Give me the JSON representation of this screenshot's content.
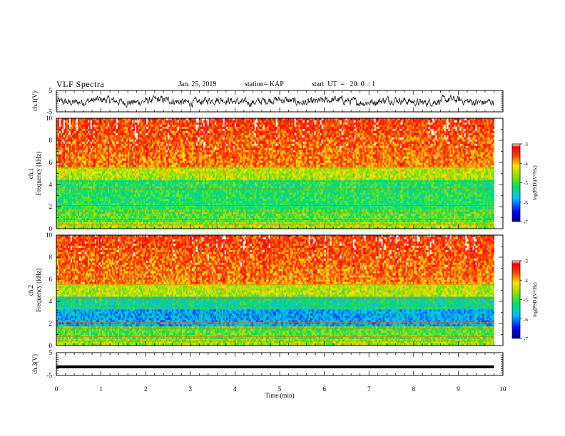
{
  "header": {
    "title": "VLF Spectra",
    "date": "Jan. 25, 2019",
    "station": "station= KAP",
    "start": "start  UT  =   20: 0  : 1"
  },
  "chart_data": [
    {
      "type": "line",
      "name": "ch1-waveform",
      "ylabel": "ch.1(V)",
      "xlim": [
        0,
        10
      ],
      "ylim": [
        -5,
        5
      ],
      "yticks": [
        "5",
        "-5"
      ]
    },
    {
      "type": "heatmap",
      "name": "ch1-spectrogram",
      "ylabel": "ch.1\nFrequency (kHz)",
      "xlim": [
        0,
        10
      ],
      "ylim": [
        0,
        10
      ],
      "yticks": [
        "0",
        "2",
        "4",
        "6",
        "8",
        "10"
      ],
      "colorbar": {
        "label": "log(PSD)(V²/Hz)",
        "range": [
          -7,
          -3
        ],
        "ticks": [
          "-3",
          "-4",
          "-5",
          "-6",
          "-7"
        ]
      },
      "data_extent_min": 9.8
    },
    {
      "type": "heatmap",
      "name": "ch2-spectrogram",
      "ylabel": "ch.2\nFrequency (kHz)",
      "xlim": [
        0,
        10
      ],
      "ylim": [
        0,
        10
      ],
      "yticks": [
        "0",
        "2",
        "4",
        "6",
        "8",
        "10"
      ],
      "colorbar": {
        "label": "log(PSD)(V²/Hz)",
        "range": [
          -7,
          -3
        ],
        "ticks": [
          "-3",
          "-4",
          "-5",
          "-6",
          "-7"
        ]
      },
      "data_extent_min": 9.8
    },
    {
      "type": "line",
      "name": "ch3-waveform",
      "ylabel": "ch.3(V)",
      "xlim": [
        0,
        10
      ],
      "ylim": [
        -5,
        5
      ],
      "yticks": [
        "5",
        "-5"
      ],
      "level": -1.2
    }
  ],
  "x_axis": {
    "label": "Time (min)",
    "ticks": [
      "0",
      "1",
      "2",
      "3",
      "4",
      "5",
      "6",
      "7",
      "8",
      "9",
      "10"
    ]
  },
  "labels": {
    "ch1_volt": "ch.1(V)",
    "ch1_spec": "ch.1",
    "ch2_spec": "ch.2",
    "freq": "Frequency (kHz)",
    "ch3_volt": "ch.3(V)",
    "cb": "log(PSD)(V²/Hz)"
  }
}
